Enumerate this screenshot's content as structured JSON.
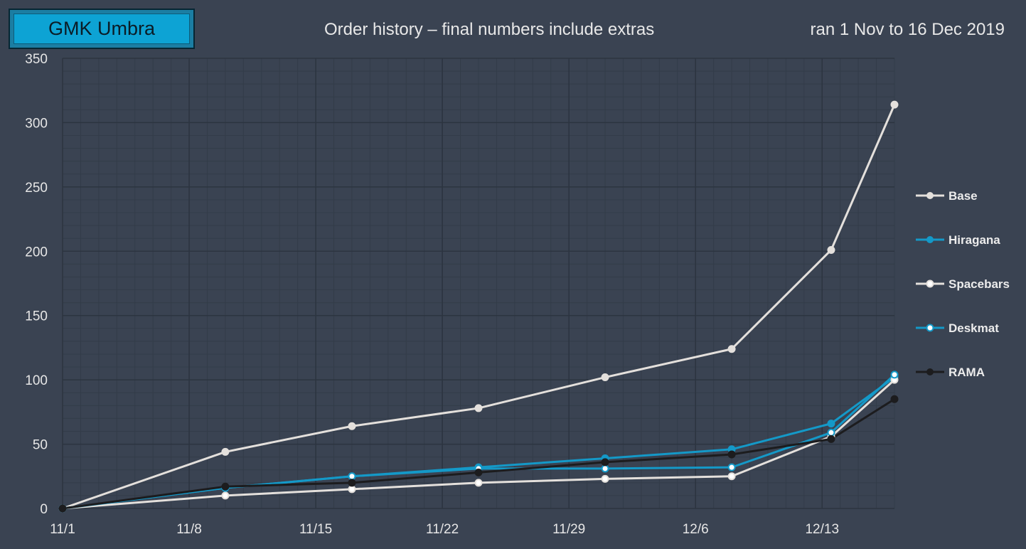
{
  "header": {
    "logo_text": "GMK Umbra",
    "title": "Order history – final numbers include extras",
    "subtitle": "ran 1 Nov to 16 Dec 2019"
  },
  "colors": {
    "background": "#3a4352",
    "grid_major": "#2c3440",
    "grid_minor": "#333c49",
    "logo_fill": "#0da3d4"
  },
  "chart_data": {
    "type": "line",
    "title": "Order history – final numbers include extras",
    "xlabel": "",
    "ylabel": "",
    "xlim_day": [
      0,
      46
    ],
    "ylim": [
      0,
      350
    ],
    "x_ticks": [
      {
        "day": 0,
        "label": "11/1"
      },
      {
        "day": 7,
        "label": "11/8"
      },
      {
        "day": 14,
        "label": "11/15"
      },
      {
        "day": 21,
        "label": "11/22"
      },
      {
        "day": 28,
        "label": "11/29"
      },
      {
        "day": 35,
        "label": "12/6"
      },
      {
        "day": 42,
        "label": "12/13"
      }
    ],
    "y_ticks": [
      0,
      50,
      100,
      150,
      200,
      250,
      300,
      350
    ],
    "grid": true,
    "legend_position": "right",
    "x_days": [
      0,
      9,
      16,
      23,
      30,
      37,
      42.5,
      46
    ],
    "series": [
      {
        "name": "Base",
        "color": "#e4e0dc",
        "marker": "filled",
        "values": [
          0,
          44,
          64,
          78,
          102,
          124,
          201,
          314
        ]
      },
      {
        "name": "Hiragana",
        "color": "#1499c8",
        "marker": "filled",
        "values": [
          0,
          16,
          25,
          32,
          39,
          46,
          66,
          102
        ]
      },
      {
        "name": "Spacebars",
        "color": "#e4e0dc",
        "marker": "open",
        "values": [
          0,
          10,
          15,
          20,
          23,
          25,
          56,
          100
        ]
      },
      {
        "name": "Deskmat",
        "color": "#1499c8",
        "marker": "open",
        "values": [
          0,
          16,
          25,
          31,
          31,
          32,
          59,
          104
        ]
      },
      {
        "name": "RAMA",
        "color": "#1c1c1e",
        "marker": "filled",
        "values": [
          0,
          17,
          20,
          28,
          36,
          42,
          54,
          85
        ]
      }
    ]
  }
}
